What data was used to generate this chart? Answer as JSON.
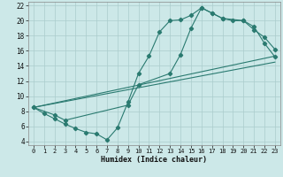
{
  "xlabel": "Humidex (Indice chaleur)",
  "background_color": "#cce8e8",
  "grid_color": "#aacccc",
  "line_color": "#2a7a70",
  "xlim": [
    -0.5,
    23.5
  ],
  "ylim": [
    3.5,
    22.5
  ],
  "xticks": [
    0,
    1,
    2,
    3,
    4,
    5,
    6,
    7,
    8,
    9,
    10,
    11,
    12,
    13,
    14,
    15,
    16,
    17,
    18,
    19,
    20,
    21,
    22,
    23
  ],
  "yticks": [
    4,
    6,
    8,
    10,
    12,
    14,
    16,
    18,
    20,
    22
  ],
  "line1_x": [
    0,
    1,
    2,
    3,
    4,
    5,
    6,
    7,
    8,
    9,
    10,
    11,
    12,
    13,
    14,
    15,
    16,
    17,
    18,
    19,
    20,
    21,
    22,
    23
  ],
  "line1_y": [
    8.5,
    7.7,
    7.0,
    6.3,
    5.7,
    5.2,
    5.0,
    4.2,
    5.8,
    9.2,
    13.0,
    15.3,
    18.5,
    20.0,
    20.1,
    20.7,
    21.7,
    21.0,
    20.3,
    20.0,
    20.0,
    18.8,
    17.8,
    16.2
  ],
  "line2_x": [
    0,
    2,
    3,
    9,
    10,
    13,
    14,
    15,
    16,
    17,
    18,
    20,
    21,
    22,
    23
  ],
  "line2_y": [
    8.5,
    7.5,
    6.8,
    8.8,
    11.5,
    13.0,
    15.5,
    19.0,
    21.7,
    21.0,
    20.3,
    20.0,
    19.2,
    17.0,
    15.2
  ],
  "line3_x": [
    0,
    23
  ],
  "line3_y": [
    8.5,
    15.3
  ],
  "line4_x": [
    0,
    23
  ],
  "line4_y": [
    8.5,
    14.5
  ]
}
